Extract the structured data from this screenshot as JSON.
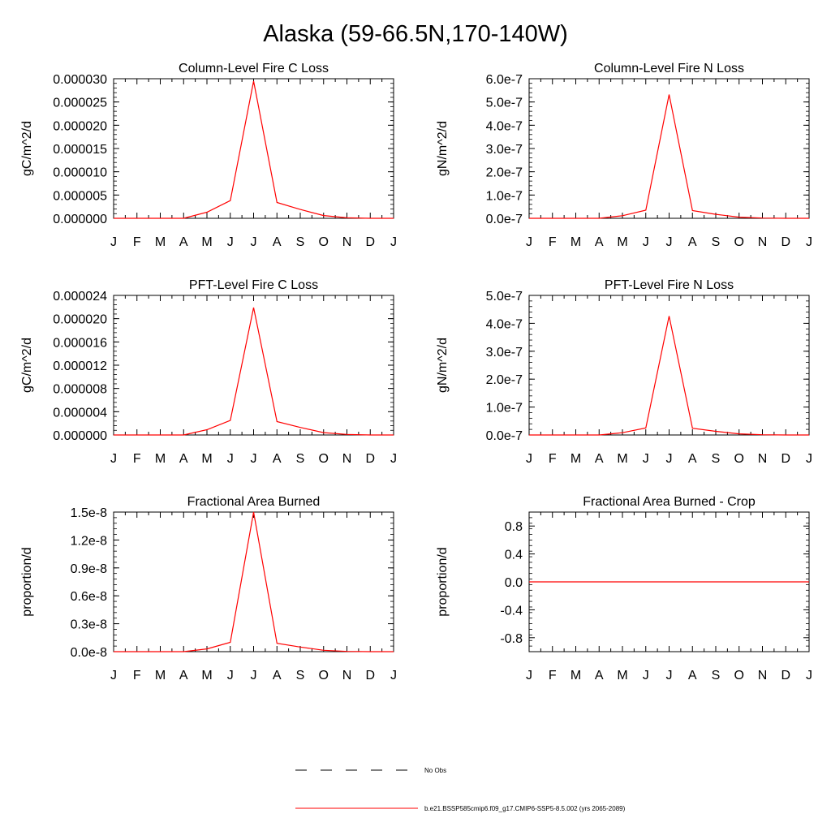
{
  "page": {
    "title": "Alaska (59-66.5N,170-140W)"
  },
  "chart_data": [
    {
      "type": "line",
      "title": "Column-Level Fire C Loss",
      "ylabel": "gC/m^2/d",
      "xlabel": "",
      "categories": [
        "J",
        "F",
        "M",
        "A",
        "M",
        "J",
        "J",
        "A",
        "S",
        "O",
        "N",
        "D",
        "J"
      ],
      "ylim": [
        0,
        3e-05
      ],
      "yticks": [
        0,
        5e-06,
        1e-05,
        1.5e-05,
        2e-05,
        2.5e-05,
        3e-05
      ],
      "ytick_labels": [
        "0.000000",
        "0.000005",
        "0.000010",
        "0.000015",
        "0.000020",
        "0.000025",
        "0.000030"
      ],
      "series": [
        {
          "values": [
            0,
            0,
            0,
            0,
            1.3e-06,
            3.8e-06,
            2.95e-05,
            3.4e-06,
            1.9e-06,
            6e-07,
            1e-07,
            0,
            0
          ],
          "color": "#ff0000"
        }
      ]
    },
    {
      "type": "line",
      "title": "Column-Level Fire N Loss",
      "ylabel": "gN/m^2/d",
      "xlabel": "",
      "categories": [
        "J",
        "F",
        "M",
        "A",
        "M",
        "J",
        "J",
        "A",
        "S",
        "O",
        "N",
        "D",
        "J"
      ],
      "ylim": [
        0,
        6e-07
      ],
      "yticks": [
        0,
        1e-07,
        2e-07,
        3e-07,
        4e-07,
        5e-07,
        6e-07
      ],
      "ytick_labels": [
        "0.0e-7",
        "1.0e-7",
        "2.0e-7",
        "3.0e-7",
        "4.0e-7",
        "5.0e-7",
        "6.0e-7"
      ],
      "series": [
        {
          "values": [
            0,
            0,
            0,
            0,
            1.1e-08,
            3.5e-08,
            5.32e-07,
            3.3e-08,
            1.7e-08,
            5e-09,
            1e-09,
            0,
            0
          ],
          "color": "#ff0000"
        }
      ]
    },
    {
      "type": "line",
      "title": "PFT-Level Fire C Loss",
      "ylabel": "gC/m^2/d",
      "xlabel": "",
      "categories": [
        "J",
        "F",
        "M",
        "A",
        "M",
        "J",
        "J",
        "A",
        "S",
        "O",
        "N",
        "D",
        "J"
      ],
      "ylim": [
        0,
        2.4e-05
      ],
      "yticks": [
        0,
        4e-06,
        8e-06,
        1.2e-05,
        1.6e-05,
        2e-05,
        2.4e-05
      ],
      "ytick_labels": [
        "0.000000",
        "0.000004",
        "0.000008",
        "0.000012",
        "0.000016",
        "0.000020",
        "0.000024"
      ],
      "series": [
        {
          "values": [
            0,
            0,
            0,
            0,
            9e-07,
            2.5e-06,
            2.19e-05,
            2.3e-06,
            1.3e-06,
            4e-07,
            1e-07,
            0,
            0
          ],
          "color": "#ff0000"
        }
      ]
    },
    {
      "type": "line",
      "title": "PFT-Level Fire N Loss",
      "ylabel": "gN/m^2/d",
      "xlabel": "",
      "categories": [
        "J",
        "F",
        "M",
        "A",
        "M",
        "J",
        "J",
        "A",
        "S",
        "O",
        "N",
        "D",
        "J"
      ],
      "ylim": [
        0,
        5e-07
      ],
      "yticks": [
        0,
        1e-07,
        2e-07,
        3e-07,
        4e-07,
        5e-07
      ],
      "ytick_labels": [
        "0.0e-7",
        "1.0e-7",
        "2.0e-7",
        "3.0e-7",
        "4.0e-7",
        "5.0e-7"
      ],
      "series": [
        {
          "values": [
            0,
            0,
            0,
            0,
            8e-09,
            2.5e-08,
            4.26e-07,
            2.4e-08,
            1.3e-08,
            4e-09,
            1e-09,
            0,
            0
          ],
          "color": "#ff0000"
        }
      ]
    },
    {
      "type": "line",
      "title": "Fractional Area Burned",
      "ylabel": "proportion/d",
      "xlabel": "",
      "categories": [
        "J",
        "F",
        "M",
        "A",
        "M",
        "J",
        "J",
        "A",
        "S",
        "O",
        "N",
        "D",
        "J"
      ],
      "ylim": [
        0,
        1.5e-08
      ],
      "yticks": [
        0,
        3e-09,
        6e-09,
        9e-09,
        1.2e-08,
        1.5e-08
      ],
      "ytick_labels": [
        "0.0e-8",
        "0.3e-8",
        "0.6e-8",
        "0.9e-8",
        "1.2e-8",
        "1.5e-8"
      ],
      "series": [
        {
          "values": [
            0,
            0,
            0,
            0,
            3e-10,
            1e-09,
            1.5e-08,
            9e-10,
            5e-10,
            1.5e-10,
            3e-11,
            0,
            0
          ],
          "color": "#ff0000"
        }
      ]
    },
    {
      "type": "line",
      "title": "Fractional Area Burned - Crop",
      "ylabel": "proportion/d",
      "xlabel": "",
      "categories": [
        "J",
        "F",
        "M",
        "A",
        "M",
        "J",
        "J",
        "A",
        "S",
        "O",
        "N",
        "D",
        "J"
      ],
      "ylim": [
        -1,
        1
      ],
      "yticks": [
        -0.8,
        -0.4,
        0,
        0.4,
        0.8
      ],
      "ytick_labels": [
        "-0.8",
        "-0.4",
        "0.0",
        "0.4",
        "0.8"
      ],
      "series": [
        {
          "values": [
            0,
            0,
            0,
            0,
            0,
            0,
            0,
            0,
            0,
            0,
            0,
            0,
            0
          ],
          "color": "#ff0000"
        }
      ]
    }
  ],
  "legend": {
    "items": [
      {
        "label": "No Obs",
        "style": "dashed",
        "color": "#000000"
      },
      {
        "label": "b.e21.BSSP585cmip6.f09_g17.CMIP6-SSP5-8.5.002 (yrs 2065-2089)",
        "style": "solid",
        "color": "#ff0000"
      }
    ]
  }
}
